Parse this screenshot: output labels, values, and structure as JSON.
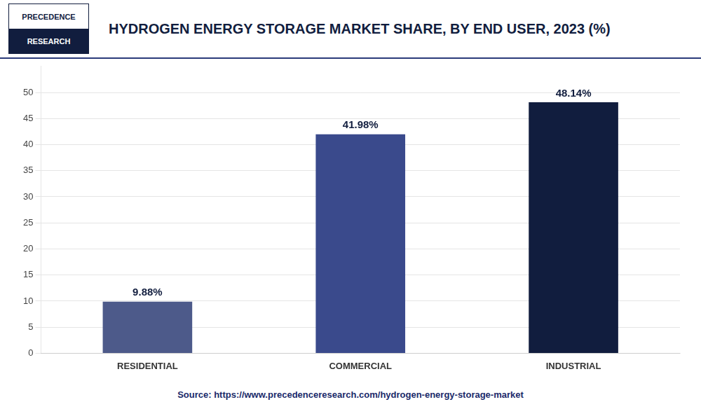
{
  "chart_data": {
    "type": "bar",
    "title": "HYDROGEN ENERGY STORAGE MARKET SHARE, BY END USER, 2023 (%)",
    "categories": [
      "RESIDENTIAL",
      "COMMERCIAL",
      "INDUSTRIAL"
    ],
    "values": [
      9.88,
      41.98,
      48.14
    ],
    "value_labels": [
      "9.88%",
      "41.98%",
      "48.14%"
    ],
    "colors": [
      "#4d5a8a",
      "#3a4a8c",
      "#111d3e"
    ],
    "ylim": [
      0,
      55
    ],
    "yticks": [
      0,
      5,
      10,
      15,
      20,
      25,
      30,
      35,
      40,
      45,
      50
    ],
    "grid": true,
    "data_labels": true,
    "annotations": [
      "PRECEDENCE",
      "RESEARCH",
      "Source: https://www.precedenceresearch.com/hydrogen-energy-storage-market"
    ]
  }
}
